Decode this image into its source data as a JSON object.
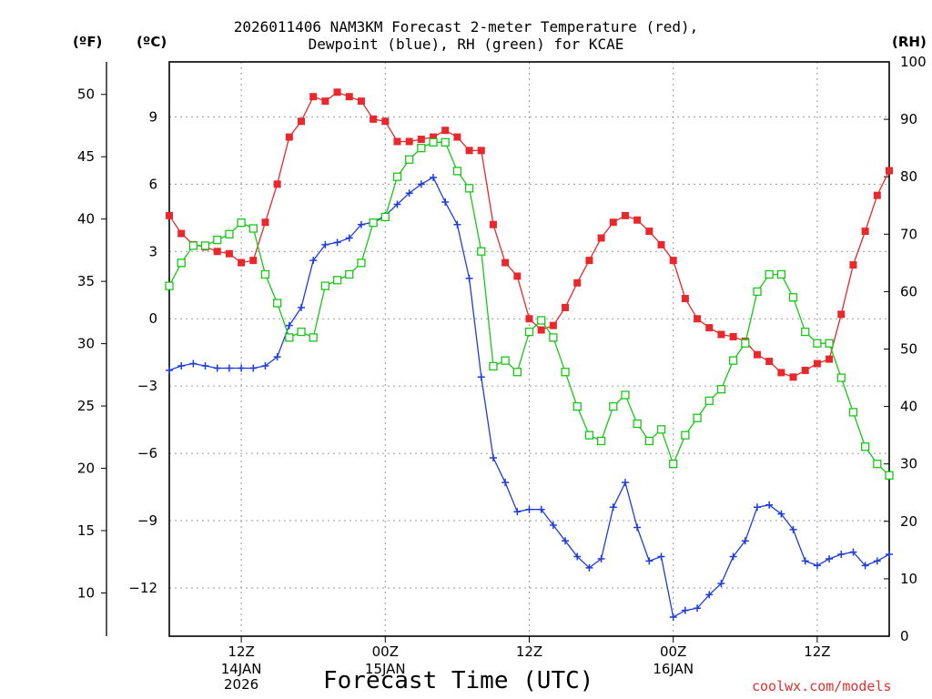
{
  "colors": {
    "temperature": "#e8282c",
    "dewpoint": "#1e3cdc",
    "rh": "#16c816",
    "grid": "#9a9a9a",
    "credit": "#e23030"
  },
  "credit": "coolwx.com/models",
  "chart_data": {
    "type": "line",
    "title_lines": [
      "2026011406 NAM3KM Forecast 2-meter Temperature (red),",
      "Dewpoint (blue), RH (green) for KCAE"
    ],
    "xlabel": "Forecast Time (UTC)",
    "unit_labels": {
      "fahrenheit": "(ºF)",
      "celsius": "(ºC)",
      "rh": "(RH)"
    },
    "x_hours": {
      "start": 6,
      "end": 66,
      "step": 1
    },
    "x_ticks": [
      {
        "hour": 12,
        "label": "12Z",
        "sub": [
          "14JAN",
          "2026"
        ]
      },
      {
        "hour": 24,
        "label": "00Z",
        "sub": [
          "15JAN"
        ]
      },
      {
        "hour": 36,
        "label": "12Z",
        "sub": []
      },
      {
        "hour": 48,
        "label": "00Z",
        "sub": [
          "16JAN"
        ]
      },
      {
        "hour": 60,
        "label": "12Z",
        "sub": []
      }
    ],
    "y_celsius": {
      "range": [
        -14.15,
        11.45
      ],
      "ticks": [
        -12,
        -9,
        -6,
        -3,
        0,
        3,
        6,
        9
      ],
      "tick_labels": [
        "−12",
        "−9",
        "−6",
        "−3",
        "0",
        "3",
        "6",
        "9"
      ]
    },
    "y_fahrenheit": {
      "ticks": [
        10,
        15,
        20,
        25,
        30,
        35,
        40,
        45,
        50
      ],
      "tick_labels": [
        "10",
        "15",
        "20",
        "25",
        "30",
        "35",
        "40",
        "45",
        "50"
      ]
    },
    "y_rh": {
      "range": [
        0,
        100
      ],
      "ticks": [
        0,
        10,
        20,
        30,
        40,
        50,
        60,
        70,
        80,
        90,
        100
      ],
      "tick_labels": [
        "0",
        "10",
        "20",
        "30",
        "40",
        "50",
        "60",
        "70",
        "80",
        "90",
        "100"
      ]
    },
    "series": [
      {
        "name": "2-meter Temperature",
        "unit": "C",
        "marker": "filled-square",
        "values": [
          4.6,
          3.8,
          3.3,
          3.2,
          3.0,
          2.9,
          2.5,
          2.6,
          4.3,
          6.0,
          8.1,
          8.8,
          9.9,
          9.7,
          10.1,
          9.9,
          9.7,
          8.9,
          8.8,
          7.9,
          7.9,
          8.0,
          8.1,
          8.4,
          8.1,
          7.5,
          7.5,
          4.2,
          2.5,
          1.9,
          0.0,
          -0.5,
          -0.3,
          0.5,
          1.6,
          2.6,
          3.6,
          4.3,
          4.6,
          4.4,
          3.9,
          3.3,
          2.6,
          0.9,
          0.0,
          -0.4,
          -0.7,
          -0.8,
          -1.0,
          -1.6,
          -1.9,
          -2.4,
          -2.6,
          -2.3,
          -2.0,
          -1.8,
          0.2,
          2.4,
          3.9,
          5.5,
          6.6
        ]
      },
      {
        "name": "Dewpoint",
        "unit": "C",
        "marker": "plus",
        "values": [
          -2.3,
          -2.1,
          -2.0,
          -2.1,
          -2.2,
          -2.2,
          -2.2,
          -2.2,
          -2.1,
          -1.7,
          -0.3,
          0.5,
          2.6,
          3.3,
          3.4,
          3.6,
          4.2,
          4.3,
          4.6,
          5.1,
          5.6,
          6.0,
          6.3,
          5.2,
          4.2,
          1.8,
          -2.6,
          -6.2,
          -7.3,
          -8.6,
          -8.5,
          -8.5,
          -9.2,
          -9.9,
          -10.6,
          -11.1,
          -10.7,
          -8.4,
          -7.3,
          -9.3,
          -10.8,
          -10.6,
          -13.3,
          -13.0,
          -12.9,
          -12.3,
          -11.8,
          -10.6,
          -9.9,
          -8.4,
          -8.3,
          -8.7,
          -9.4,
          -10.8,
          -11.0,
          -10.7,
          -10.5,
          -10.4,
          -11.0,
          -10.8,
          -10.5
        ]
      },
      {
        "name": "RH",
        "unit": "%",
        "marker": "open-square",
        "values": [
          61,
          65,
          68,
          68,
          69,
          70,
          72,
          71,
          63,
          58,
          52,
          53,
          52,
          61,
          62,
          63,
          65,
          72,
          73,
          80,
          83,
          85,
          86,
          86,
          81,
          78,
          67,
          47,
          48,
          46,
          53,
          55,
          52,
          46,
          40,
          35,
          34,
          40,
          42,
          37,
          34,
          36,
          30,
          35,
          38,
          41,
          43,
          48,
          51,
          60,
          63,
          63,
          59,
          53,
          51,
          51,
          45,
          39,
          33,
          30,
          28
        ]
      }
    ]
  }
}
